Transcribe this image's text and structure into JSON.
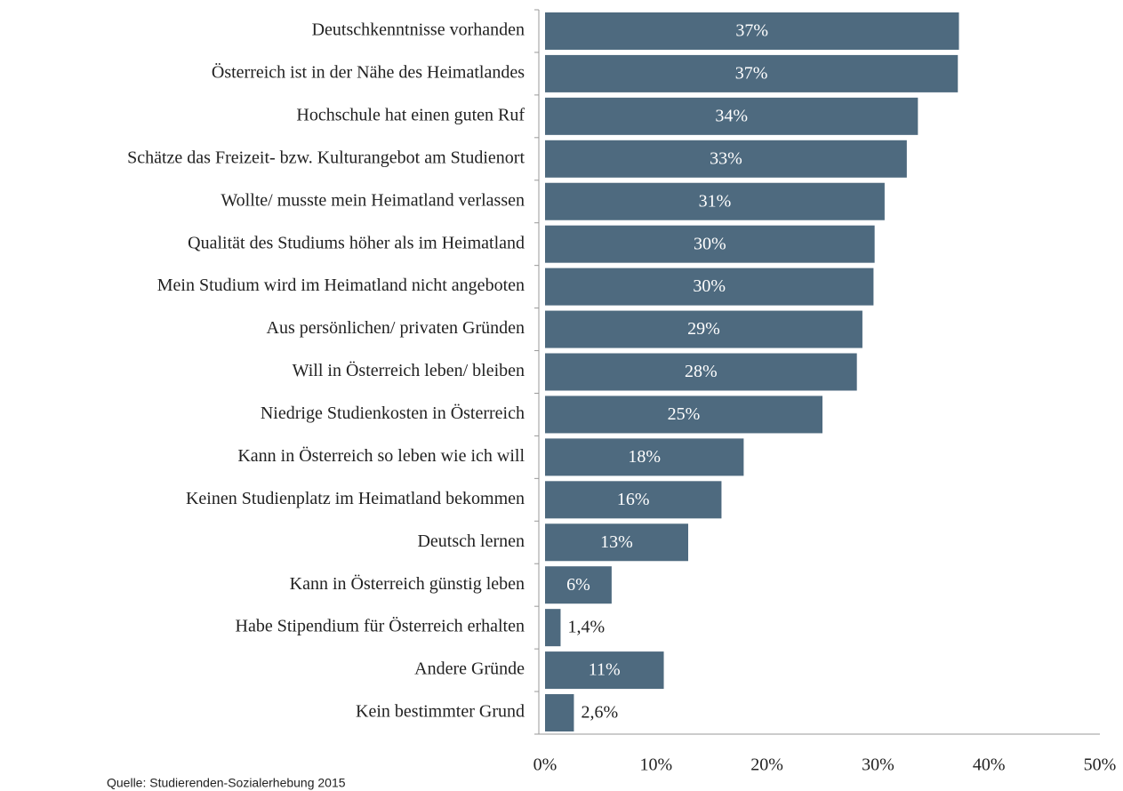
{
  "chart_data": {
    "type": "hbar",
    "categories": [
      "Deutschkenntnisse vorhanden",
      "Österreich ist in der Nähe des Heimatlandes",
      "Hochschule hat einen guten Ruf",
      "Schätze das Freizeit- bzw. Kulturangebot am Studienort",
      "Wollte/ musste mein Heimatland verlassen ",
      "Qualität des Studiums höher als im Heimatland",
      "Mein Studium wird im Heimatland nicht angeboten",
      "Aus persönlichen/ privaten Gründen",
      "Will in Österreich leben/ bleiben",
      "Niedrige Studienkosten in Österreich",
      "Kann in Österreich so leben wie ich will",
      "Keinen Studienplatz im Heimatland bekommen",
      "Deutsch lernen",
      "Kann in Österreich günstig leben",
      "Habe Stipendium für Österreich erhalten",
      "Andere Gründe",
      "Kein bestimmter Grund"
    ],
    "values": [
      37.3,
      37.2,
      33.6,
      32.6,
      30.6,
      29.7,
      29.6,
      28.6,
      28.1,
      25.0,
      17.9,
      15.9,
      12.9,
      6,
      1.4,
      10.7,
      2.6
    ],
    "value_labels": [
      "37%",
      "37%",
      "34%",
      "33%",
      "31%",
      "30%",
      "30%",
      "29%",
      "28%",
      "25%",
      "18%",
      "16%",
      "13%",
      "6%",
      "1,4%",
      "11%",
      "2,6%"
    ],
    "color": "#4e6a7f",
    "xlim": [
      0,
      50
    ],
    "xticks": [
      {
        "value": 0,
        "label": "0%"
      },
      {
        "value": 10,
        "label": "10%"
      },
      {
        "value": 20,
        "label": "20%"
      },
      {
        "value": 30,
        "label": "30%"
      },
      {
        "value": 40,
        "label": "40%"
      },
      {
        "value": 50,
        "label": "50%"
      }
    ],
    "source": "Quelle: Studierenden-Sozialerhebung 2015"
  }
}
